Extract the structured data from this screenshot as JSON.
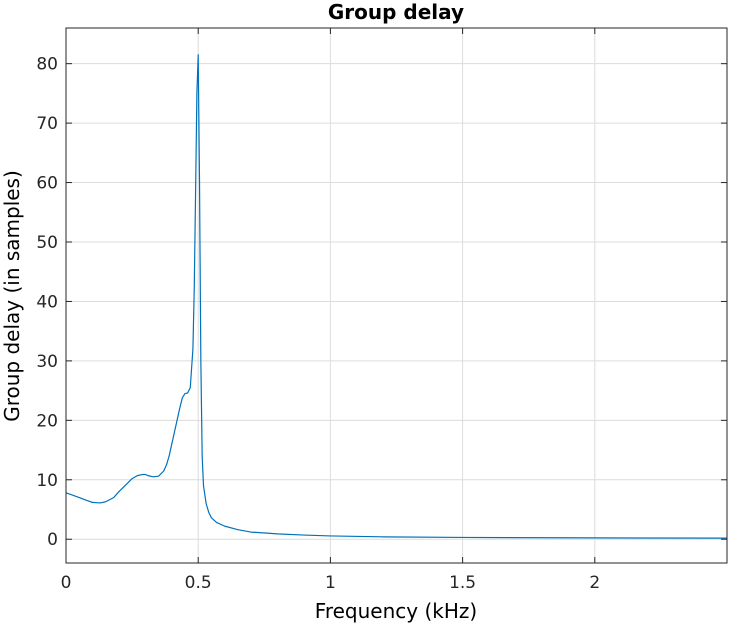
{
  "chart_data": {
    "type": "line",
    "title": "Group delay",
    "xlabel": "Frequency (kHz)",
    "ylabel": "Group delay (in samples)",
    "xlim": [
      0,
      2.5
    ],
    "ylim": [
      -4,
      86
    ],
    "xticks": [
      0,
      0.5,
      1,
      1.5,
      2
    ],
    "xtick_labels": [
      "0",
      "0.5",
      "1",
      "1.5",
      "2"
    ],
    "yticks": [
      0,
      10,
      20,
      30,
      40,
      50,
      60,
      70,
      80
    ],
    "ytick_labels": [
      "0",
      "10",
      "20",
      "30",
      "40",
      "50",
      "60",
      "70",
      "80"
    ],
    "grid": true,
    "line_color": "#0072bd",
    "series": [
      {
        "x": [
          0,
          0.02,
          0.05,
          0.08,
          0.1,
          0.13,
          0.15,
          0.18,
          0.2,
          0.23,
          0.25,
          0.27,
          0.29,
          0.3,
          0.31,
          0.33,
          0.35,
          0.37,
          0.38,
          0.39,
          0.4,
          0.41,
          0.42,
          0.43,
          0.44,
          0.45,
          0.46,
          0.47,
          0.48,
          0.485,
          0.49,
          0.495,
          0.5,
          0.505,
          0.51,
          0.515,
          0.52,
          0.53,
          0.54,
          0.55,
          0.57,
          0.6,
          0.65,
          0.7,
          0.8,
          0.9,
          1.0,
          1.2,
          1.5,
          2.0,
          2.5
        ],
        "y": [
          7.8,
          7.5,
          7.0,
          6.5,
          6.2,
          6.1,
          6.3,
          7.0,
          8.0,
          9.3,
          10.2,
          10.7,
          10.9,
          10.9,
          10.7,
          10.5,
          10.6,
          11.5,
          12.5,
          14.0,
          16.0,
          18.0,
          20.0,
          22.0,
          23.8,
          24.5,
          24.6,
          25.5,
          32.0,
          42.0,
          58.0,
          75.0,
          81.5,
          60.0,
          30.0,
          14.0,
          9.0,
          6.0,
          4.5,
          3.6,
          2.8,
          2.2,
          1.6,
          1.2,
          0.9,
          0.7,
          0.55,
          0.4,
          0.3,
          0.22,
          0.18
        ]
      }
    ]
  }
}
